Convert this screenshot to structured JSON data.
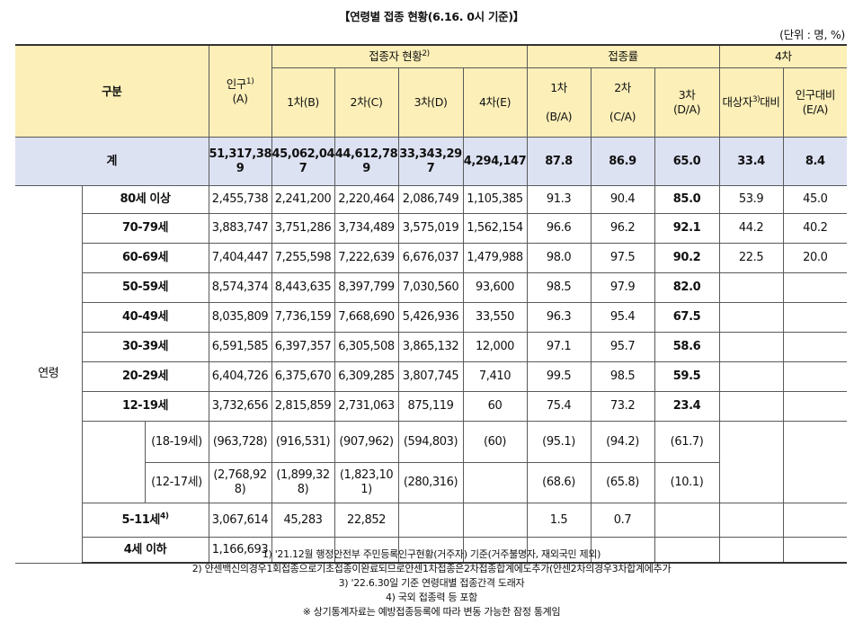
{
  "title": "【연령별 접종 현황(6.16. 0시 기준)】",
  "unit": "(단위 : 명, %)",
  "header": {
    "gubun": "구분",
    "population": "인구",
    "population_sup": "1)",
    "population_code": "(A)",
    "vaccinated_group": "접종자 현황",
    "vaccinated_sup": "2)",
    "rate_group": "접종률",
    "dose1": "1차(B)",
    "dose2": "2차(C)",
    "dose3": "3차(D)",
    "dose4": "4차(E)",
    "rate1_label": "1차",
    "rate1_code": "(B/A)",
    "rate2_label": "2차",
    "rate2_code": "(C/A)",
    "rate3_label": "3차",
    "rate3_code": "(D/A)",
    "rate4_group": "4차",
    "target_pre": "대상자",
    "target_sup": "3)",
    "target_post": "대비",
    "pop_ratio": "인구대비",
    "pop_ratio_code": "(E/A)"
  },
  "total": {
    "label": "계",
    "pop_a": "51,317,38",
    "pop_b": "9",
    "d1_a": "45,062,04",
    "d1_b": "7",
    "d2_a": "44,612,78",
    "d2_b": "9",
    "d3_a": "33,343,29",
    "d3_b": "7",
    "d4": "4,294,147",
    "r1": "87.8",
    "r2": "86.9",
    "r3": "65.0",
    "r4t": "33.4",
    "r4p": "8.4"
  },
  "age_group_label": "연령",
  "rows": [
    {
      "label": "80세 이상",
      "pop": "2,455,738",
      "d1": "2,241,200",
      "d2": "2,220,464",
      "d3": "2,086,749",
      "d4": "1,105,385",
      "r1": "91.3",
      "r2": "90.4",
      "r3": "85.0",
      "r4t": "53.9",
      "r4p": "45.0"
    },
    {
      "label": "70-79세",
      "pop": "3,883,747",
      "d1": "3,751,286",
      "d2": "3,734,489",
      "d3": "3,575,019",
      "d4": "1,562,154",
      "r1": "96.6",
      "r2": "96.2",
      "r3": "92.1",
      "r4t": "44.2",
      "r4p": "40.2"
    },
    {
      "label": "60-69세",
      "pop": "7,404,447",
      "d1": "7,255,598",
      "d2": "7,222,639",
      "d3": "6,676,037",
      "d4": "1,479,988",
      "r1": "98.0",
      "r2": "97.5",
      "r3": "90.2",
      "r4t": "22.5",
      "r4p": "20.0"
    },
    {
      "label": "50-59세",
      "pop": "8,574,374",
      "d1": "8,443,635",
      "d2": "8,397,799",
      "d3": "7,030,560",
      "d4": "93,600",
      "r1": "98.5",
      "r2": "97.9",
      "r3": "82.0",
      "r4t": "",
      "r4p": ""
    },
    {
      "label": "40-49세",
      "pop": "8,035,809",
      "d1": "7,736,159",
      "d2": "7,668,690",
      "d3": "5,426,936",
      "d4": "33,550",
      "r1": "96.3",
      "r2": "95.4",
      "r3": "67.5",
      "r4t": "",
      "r4p": ""
    },
    {
      "label": "30-39세",
      "pop": "6,591,585",
      "d1": "6,397,357",
      "d2": "6,305,508",
      "d3": "3,865,132",
      "d4": "12,000",
      "r1": "97.1",
      "r2": "95.7",
      "r3": "58.6",
      "r4t": "",
      "r4p": ""
    },
    {
      "label": "20-29세",
      "pop": "6,404,726",
      "d1": "6,375,670",
      "d2": "6,309,285",
      "d3": "3,807,745",
      "d4": "7,410",
      "r1": "99.5",
      "r2": "98.5",
      "r3": "59.5",
      "r4t": "",
      "r4p": ""
    },
    {
      "label": "12-19세",
      "pop": "3,732,656",
      "d1": "2,815,859",
      "d2": "2,731,063",
      "d3": "875,119",
      "d4": "60",
      "r1": "75.4",
      "r2": "73.2",
      "r3": "23.4",
      "r4t": "",
      "r4p": ""
    }
  ],
  "sub_1819": {
    "label": "(18-19세)",
    "pop": "(963,728)",
    "d1": "(916,531)",
    "d2": "(907,962)",
    "d3": "(594,803)",
    "d4": "(60)",
    "r1": "(95.1)",
    "r2": "(94.2)",
    "r3": "(61.7)"
  },
  "sub_1217": {
    "label": "(12-17세)",
    "pop_a": "(2,768,92",
    "pop_b": "8)",
    "d1_a": "(1,899,32",
    "d1_b": "8)",
    "d2_a": "(1,823,10",
    "d2_b": "1)",
    "d3": "(280,316)",
    "r1": "(68.6)",
    "r2": "(65.8)",
    "r3": "(10.1)"
  },
  "row_511": {
    "label": "5-11세",
    "sup": "4)",
    "pop": "3,067,614",
    "d1": "45,283",
    "d2": "22,852",
    "r1": "1.5",
    "r2": "0.7"
  },
  "row_4under": {
    "label": "4세 이하",
    "pop": "1,166,693"
  },
  "notes": [
    "1) '21.12월 행정안전부 주민등록인구현황(거주자) 기준(거주불명자, 재외국민 제외)",
    "2) 얀센백신의경우1회접종으로기초접종이완료되므로얀센1차접종은2차접종합계에도추가(얀센2차의경우3차합계에추가",
    "3) '22.6.30일 기준 연령대별 접종간격 도래자",
    "4) 국외 접종력 등 포함",
    "※ 상기통계자료는 예방접종등록에 따라 변동 가능한 잠정 통계임"
  ]
}
